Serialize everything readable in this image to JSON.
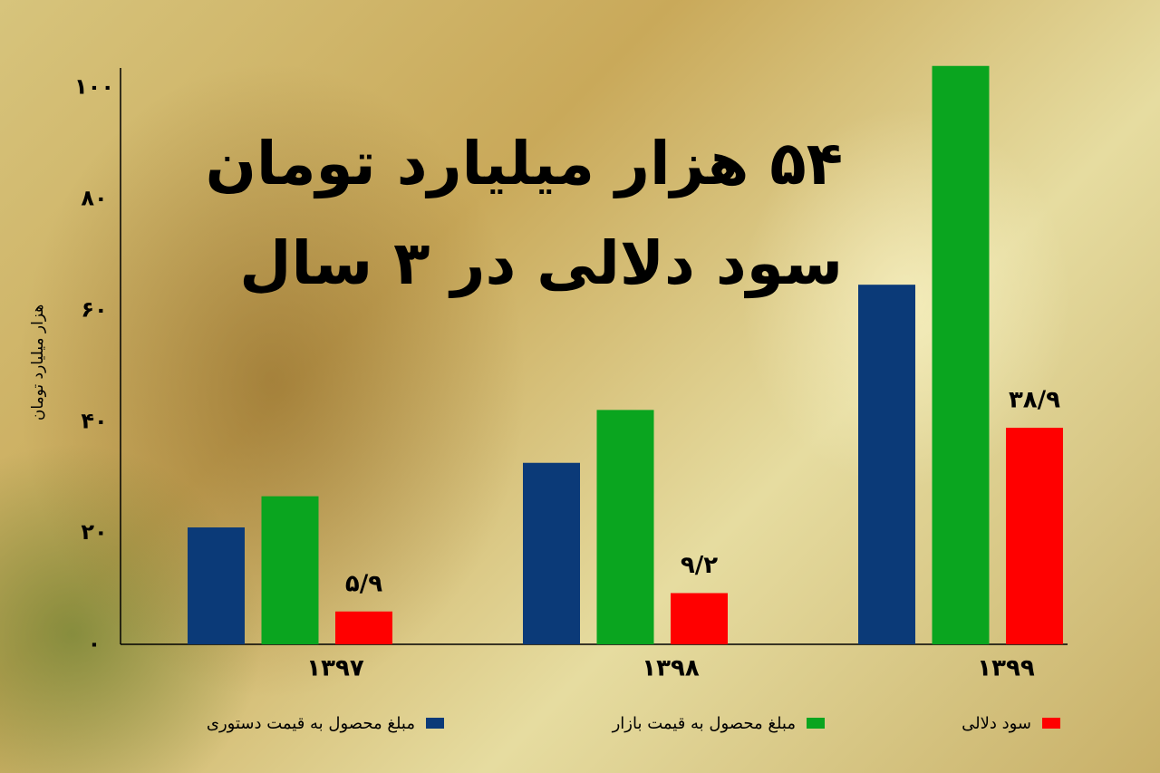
{
  "chart_data": {
    "type": "bar",
    "title": [
      "۵۴ هزار میلیارد تومان",
      "سود دلالی در ۳ سال"
    ],
    "y_label": "هزار میلیارد تومان",
    "categories": [
      "۱۳۹۷",
      "۱۳۹۸",
      "۱۳۹۹"
    ],
    "series": [
      {
        "name": "مبلغ محصول به قیمت دستوری",
        "color": "#0b3a78",
        "values": [
          21,
          32.6,
          64.6
        ]
      },
      {
        "name": "مبلغ محصول به قیمت بازار",
        "color": "#0aa51f",
        "values": [
          26.6,
          42.1,
          103.9
        ]
      },
      {
        "name": "سود دلالی",
        "color": "#ff0000",
        "values": [
          5.9,
          9.2,
          38.9
        ],
        "value_labels": [
          "۵/۹",
          "۹/۲",
          "۳۸/۹"
        ]
      }
    ],
    "ylim": [
      0,
      105
    ],
    "yticks": [
      {
        "value": 0,
        "label": "۰"
      },
      {
        "value": 20,
        "label": "۲۰"
      },
      {
        "value": 40,
        "label": "۴۰"
      },
      {
        "value": 60,
        "label": "۶۰"
      },
      {
        "value": 80,
        "label": "۸۰"
      },
      {
        "value": 100,
        "label": "۱۰۰"
      }
    ],
    "grid": false,
    "legend": "bottom"
  }
}
